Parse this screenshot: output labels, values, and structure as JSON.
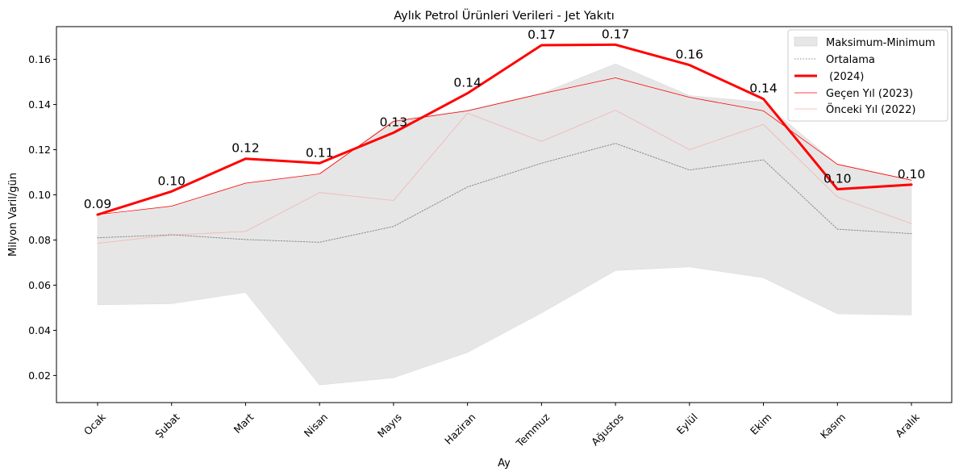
{
  "chart_data": {
    "type": "line",
    "title": "Aylık Petrol Ürünleri Verileri - Jet Yakıtı",
    "xlabel": "Ay",
    "ylabel": "Milyon Varil/gün",
    "categories": [
      "Ocak",
      "Şubat",
      "Mart",
      "Nisan",
      "Mayıs",
      "Haziran",
      "Temmuz",
      "Ağustos",
      "Eylül",
      "Ekim",
      "Kasım",
      "Aralık"
    ],
    "ylim": [
      0.008,
      0.1745
    ],
    "yticks": [
      "0.02",
      "0.04",
      "0.06",
      "0.08",
      "0.10",
      "0.12",
      "0.14",
      "0.16"
    ],
    "grid": false,
    "legend_position": "top-right",
    "band": {
      "name": "Maksimum-Minimum",
      "color": "#e6e6e6",
      "max": [
        0.0905,
        0.095,
        0.105,
        0.109,
        0.133,
        0.1375,
        0.145,
        0.158,
        0.144,
        0.141,
        0.1135,
        0.106
      ],
      "min": [
        0.0513,
        0.0518,
        0.0568,
        0.0158,
        0.019,
        0.0302,
        0.0477,
        0.0665,
        0.0681,
        0.0633,
        0.0473,
        0.0468
      ]
    },
    "series": [
      {
        "name": "Ortalama",
        "color": "#888888",
        "style": "dotted",
        "values": [
          0.081,
          0.0823,
          0.0802,
          0.079,
          0.086,
          0.1035,
          0.114,
          0.1228,
          0.111,
          0.1155,
          0.0848,
          0.0828
        ]
      },
      {
        "name": " (2024)",
        "color": "#ff0000",
        "style": "thick",
        "values": [
          0.0912,
          0.1015,
          0.116,
          0.114,
          0.1275,
          0.145,
          0.1663,
          0.1665,
          0.1575,
          0.1425,
          0.1025,
          0.1045
        ],
        "labels": [
          "0.09",
          "0.10",
          "0.12",
          "0.11",
          "0.13",
          "0.14",
          "0.17",
          "0.17",
          "0.16",
          "0.14",
          "0.10",
          "0.10"
        ]
      },
      {
        "name": "Geçen Yıl (2023)",
        "color": "#ff0000",
        "style": "thin",
        "values": [
          0.0912,
          0.095,
          0.1052,
          0.1093,
          0.1325,
          0.1372,
          0.1448,
          0.1518,
          0.1432,
          0.1372,
          0.1135,
          0.1065
        ]
      },
      {
        "name": "Önceki Yıl (2022)",
        "color": "#f4b3b3",
        "style": "hair",
        "values": [
          0.0785,
          0.0822,
          0.0838,
          0.101,
          0.0975,
          0.1362,
          0.1237,
          0.1375,
          0.12,
          0.1312,
          0.099,
          0.0873
        ]
      }
    ]
  }
}
